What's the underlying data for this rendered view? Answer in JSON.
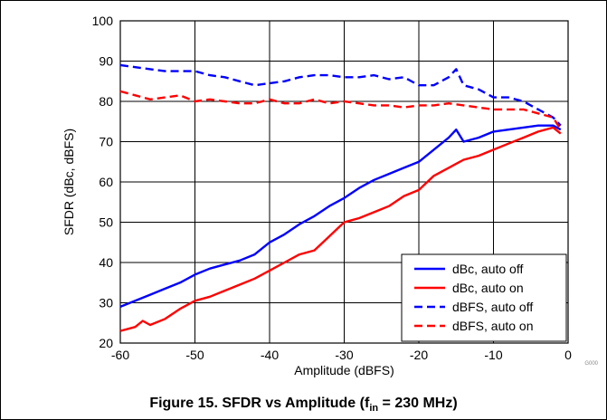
{
  "figure": {
    "caption_main": "Figure 15. SFDR vs Amplitude (f",
    "caption_sub": "in",
    "caption_tail": " = 230 MHz)",
    "code": "G000"
  },
  "chart_data": {
    "type": "line",
    "title": "",
    "xlabel": "Amplitude (dBFS)",
    "ylabel": "SFDR (dBc, dBFS)",
    "xlim": [
      -60,
      0
    ],
    "ylim": [
      20,
      100
    ],
    "xticks": [
      -60,
      -50,
      -40,
      -30,
      -20,
      -10,
      0
    ],
    "yticks": [
      20,
      30,
      40,
      50,
      60,
      70,
      80,
      90,
      100
    ],
    "grid": true,
    "legend": "bottom-right",
    "series": [
      {
        "name": "dBc, auto off",
        "color": "#0000ff",
        "dash": false,
        "x": [
          -60,
          -58,
          -56,
          -54,
          -52,
          -50,
          -48,
          -46,
          -44,
          -42,
          -40,
          -38,
          -36,
          -34,
          -32,
          -30,
          -28,
          -26,
          -24,
          -22,
          -20,
          -18,
          -16,
          -15,
          -14,
          -12,
          -10,
          -8,
          -6,
          -4,
          -2,
          -1
        ],
        "y": [
          29,
          30.5,
          32,
          33.5,
          35,
          37,
          38.5,
          39.5,
          40.5,
          42,
          45,
          47,
          49.5,
          51.5,
          54,
          56,
          58.5,
          60.5,
          62,
          63.5,
          65,
          68,
          71,
          73,
          70,
          71,
          72.5,
          73,
          73.5,
          74,
          74,
          73
        ]
      },
      {
        "name": "dBc, auto on",
        "color": "#ff0000",
        "dash": false,
        "x": [
          -60,
          -58,
          -57,
          -56,
          -54,
          -52,
          -50,
          -48,
          -46,
          -44,
          -42,
          -40,
          -38,
          -36,
          -34,
          -32,
          -30,
          -28,
          -26,
          -24,
          -22,
          -20,
          -18,
          -16,
          -14,
          -12,
          -10,
          -8,
          -6,
          -4,
          -2,
          -1
        ],
        "y": [
          23,
          24,
          25.5,
          24.5,
          26,
          28.5,
          30.5,
          31.5,
          33,
          34.5,
          36,
          38,
          40,
          42,
          43,
          46.5,
          50,
          51,
          52.5,
          54,
          56.5,
          58,
          61.5,
          63.5,
          65.5,
          66.5,
          68,
          69.5,
          71,
          72.5,
          73.5,
          72
        ]
      },
      {
        "name": "dBFS, auto off",
        "color": "#0000ff",
        "dash": true,
        "x": [
          -60,
          -58,
          -56,
          -54,
          -52,
          -50,
          -48,
          -46,
          -44,
          -42,
          -40,
          -38,
          -36,
          -34,
          -32,
          -30,
          -28,
          -26,
          -24,
          -22,
          -20,
          -18,
          -16,
          -15,
          -14,
          -12,
          -10,
          -8,
          -6,
          -4,
          -2,
          -1
        ],
        "y": [
          89,
          88.5,
          88,
          87.5,
          87.5,
          87.5,
          86.5,
          86,
          85,
          84,
          84.5,
          85,
          86,
          86.5,
          86.5,
          86,
          86,
          86.5,
          85.5,
          86,
          84,
          84,
          86,
          88,
          84,
          83,
          81,
          81,
          80,
          78,
          76,
          74
        ]
      },
      {
        "name": "dBFS, auto on",
        "color": "#ff0000",
        "dash": true,
        "x": [
          -60,
          -58,
          -56,
          -54,
          -52,
          -50,
          -48,
          -46,
          -44,
          -42,
          -40,
          -38,
          -36,
          -34,
          -32,
          -30,
          -28,
          -26,
          -24,
          -22,
          -20,
          -18,
          -16,
          -14,
          -12,
          -10,
          -8,
          -6,
          -4,
          -2,
          -1
        ],
        "y": [
          82.5,
          81.5,
          80.5,
          81,
          81.5,
          80,
          80.5,
          80,
          79.5,
          79.5,
          80.5,
          79.5,
          79.5,
          80.5,
          79.5,
          80,
          79.5,
          79,
          79,
          78.5,
          79,
          79,
          79.5,
          79,
          78.5,
          78,
          78,
          78,
          77,
          76,
          73
        ]
      }
    ]
  }
}
